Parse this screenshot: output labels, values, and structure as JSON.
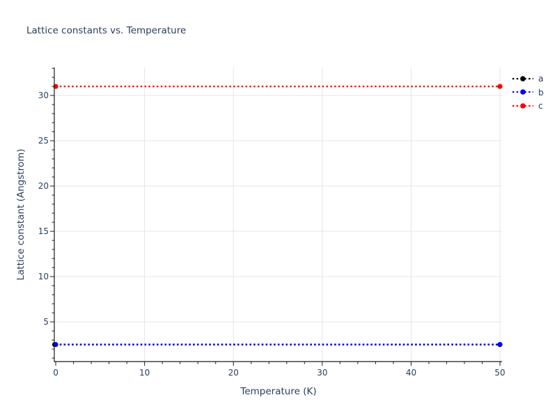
{
  "title": "Lattice constants vs. Temperature",
  "colors": {
    "text": "#2a3f5f",
    "grid": "#e5e5e5",
    "spine": "#1a1a1a",
    "background": "#ffffff",
    "series_a": "#000000",
    "series_b": "#0000ff",
    "series_c": "#ff0000"
  },
  "chart_data": {
    "type": "line",
    "title": "Lattice constants vs. Temperature",
    "xlabel": "Temperature (K)",
    "ylabel": "Lattice constant (Angstrom)",
    "xlim": [
      -0.16,
      50.23
    ],
    "ylim": [
      0.62,
      33.08
    ],
    "x_ticks": [
      0,
      10,
      20,
      30,
      40,
      50
    ],
    "x_minor_step": 2,
    "y_ticks": [
      5,
      10,
      15,
      20,
      25,
      30
    ],
    "y_minor_step": 1,
    "grid": true,
    "legend_position": "outside-right",
    "series": [
      {
        "name": "a",
        "color": "#000000",
        "linestyle": "dotted",
        "marker": "circle",
        "x": [
          0,
          50
        ],
        "values": [
          2.5,
          2.5
        ]
      },
      {
        "name": "b",
        "color": "#0000ff",
        "linestyle": "dotted",
        "marker": "circle",
        "x": [
          0,
          50
        ],
        "values": [
          2.5,
          2.5
        ]
      },
      {
        "name": "c",
        "color": "#ff0000",
        "linestyle": "dotted",
        "marker": "circle",
        "x": [
          0,
          50
        ],
        "values": [
          31.0,
          31.0
        ]
      }
    ],
    "notes": "series a and b overlap (a hidden beneath b); all series constant across temperature range"
  }
}
